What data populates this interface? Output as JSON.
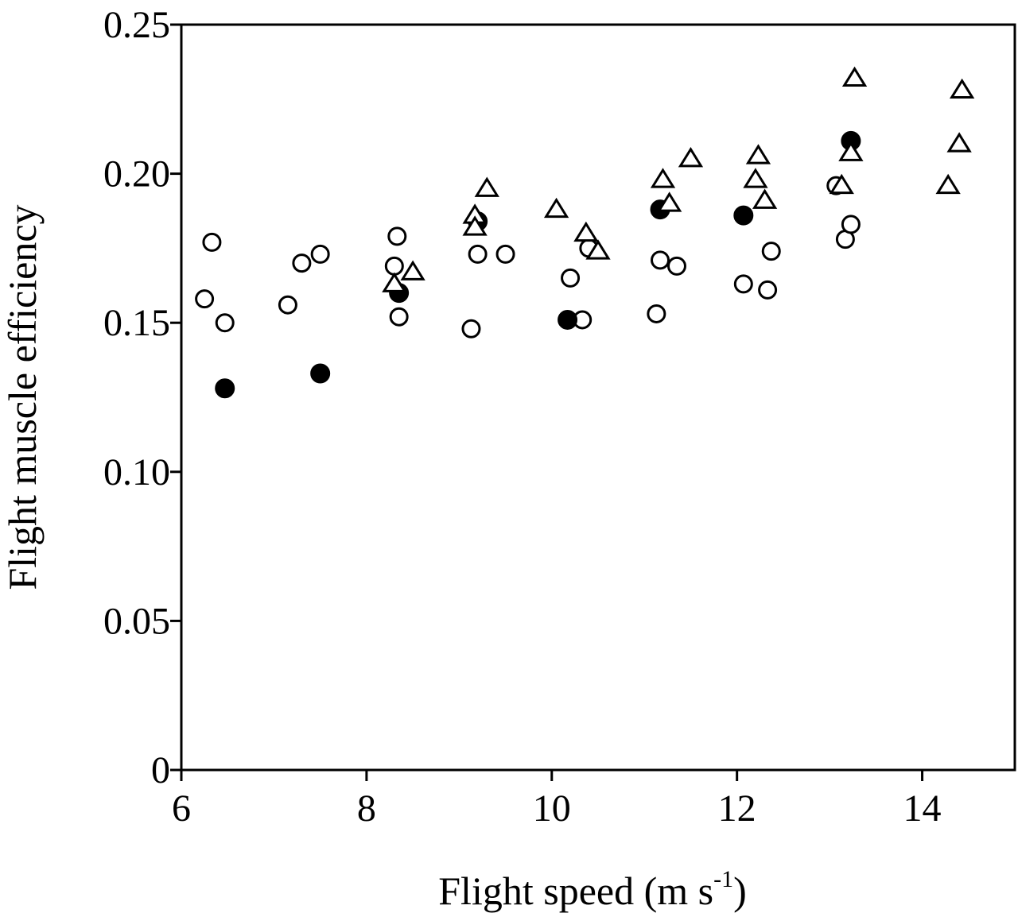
{
  "chart_data": {
    "type": "scatter",
    "xlabel": "Flight speed (m s",
    "xlabel_sup": "-1",
    "xlabel_close": ")",
    "ylabel": "Flight muscle efficiency",
    "xlim": [
      6,
      15
    ],
    "ylim": [
      0,
      0.25
    ],
    "x_ticks": [
      "6",
      "8",
      "10",
      "12",
      "14"
    ],
    "x_tick_values": [
      6,
      8,
      10,
      12,
      14
    ],
    "y_ticks": [
      "0",
      "0.05",
      "0.10",
      "0.15",
      "0.20",
      "0.25"
    ],
    "y_tick_values": [
      0,
      0.05,
      0.1,
      0.15,
      0.2,
      0.25
    ],
    "grid": false,
    "legend": "none",
    "series": [
      {
        "marker": "open-circle",
        "points": [
          [
            6.25,
            0.158
          ],
          [
            6.33,
            0.177
          ],
          [
            6.47,
            0.15
          ],
          [
            7.15,
            0.156
          ],
          [
            7.3,
            0.17
          ],
          [
            7.5,
            0.173
          ],
          [
            8.33,
            0.179
          ],
          [
            8.3,
            0.169
          ],
          [
            8.35,
            0.152
          ],
          [
            9.13,
            0.148
          ],
          [
            9.2,
            0.173
          ],
          [
            9.5,
            0.173
          ],
          [
            10.2,
            0.165
          ],
          [
            10.4,
            0.175
          ],
          [
            10.33,
            0.151
          ],
          [
            11.13,
            0.153
          ],
          [
            11.17,
            0.171
          ],
          [
            11.35,
            0.169
          ],
          [
            12.07,
            0.163
          ],
          [
            12.33,
            0.161
          ],
          [
            12.37,
            0.174
          ],
          [
            13.07,
            0.196
          ],
          [
            13.17,
            0.178
          ],
          [
            13.23,
            0.183
          ]
        ]
      },
      {
        "marker": "filled-circle",
        "points": [
          [
            6.47,
            0.128
          ],
          [
            7.5,
            0.133
          ],
          [
            8.35,
            0.16
          ],
          [
            9.2,
            0.184
          ],
          [
            10.17,
            0.151
          ],
          [
            11.17,
            0.188
          ],
          [
            12.07,
            0.186
          ],
          [
            13.23,
            0.211
          ]
        ]
      },
      {
        "marker": "open-triangle",
        "points": [
          [
            8.3,
            0.163
          ],
          [
            8.5,
            0.167
          ],
          [
            9.17,
            0.186
          ],
          [
            9.17,
            0.182
          ],
          [
            9.3,
            0.195
          ],
          [
            10.05,
            0.188
          ],
          [
            10.37,
            0.18
          ],
          [
            10.5,
            0.174
          ],
          [
            11.2,
            0.198
          ],
          [
            11.27,
            0.19
          ],
          [
            11.5,
            0.205
          ],
          [
            12.23,
            0.206
          ],
          [
            12.2,
            0.198
          ],
          [
            12.3,
            0.191
          ],
          [
            13.13,
            0.196
          ],
          [
            13.23,
            0.207
          ],
          [
            13.27,
            0.232
          ],
          [
            14.28,
            0.196
          ],
          [
            14.4,
            0.21
          ],
          [
            14.43,
            0.228
          ]
        ]
      }
    ]
  }
}
